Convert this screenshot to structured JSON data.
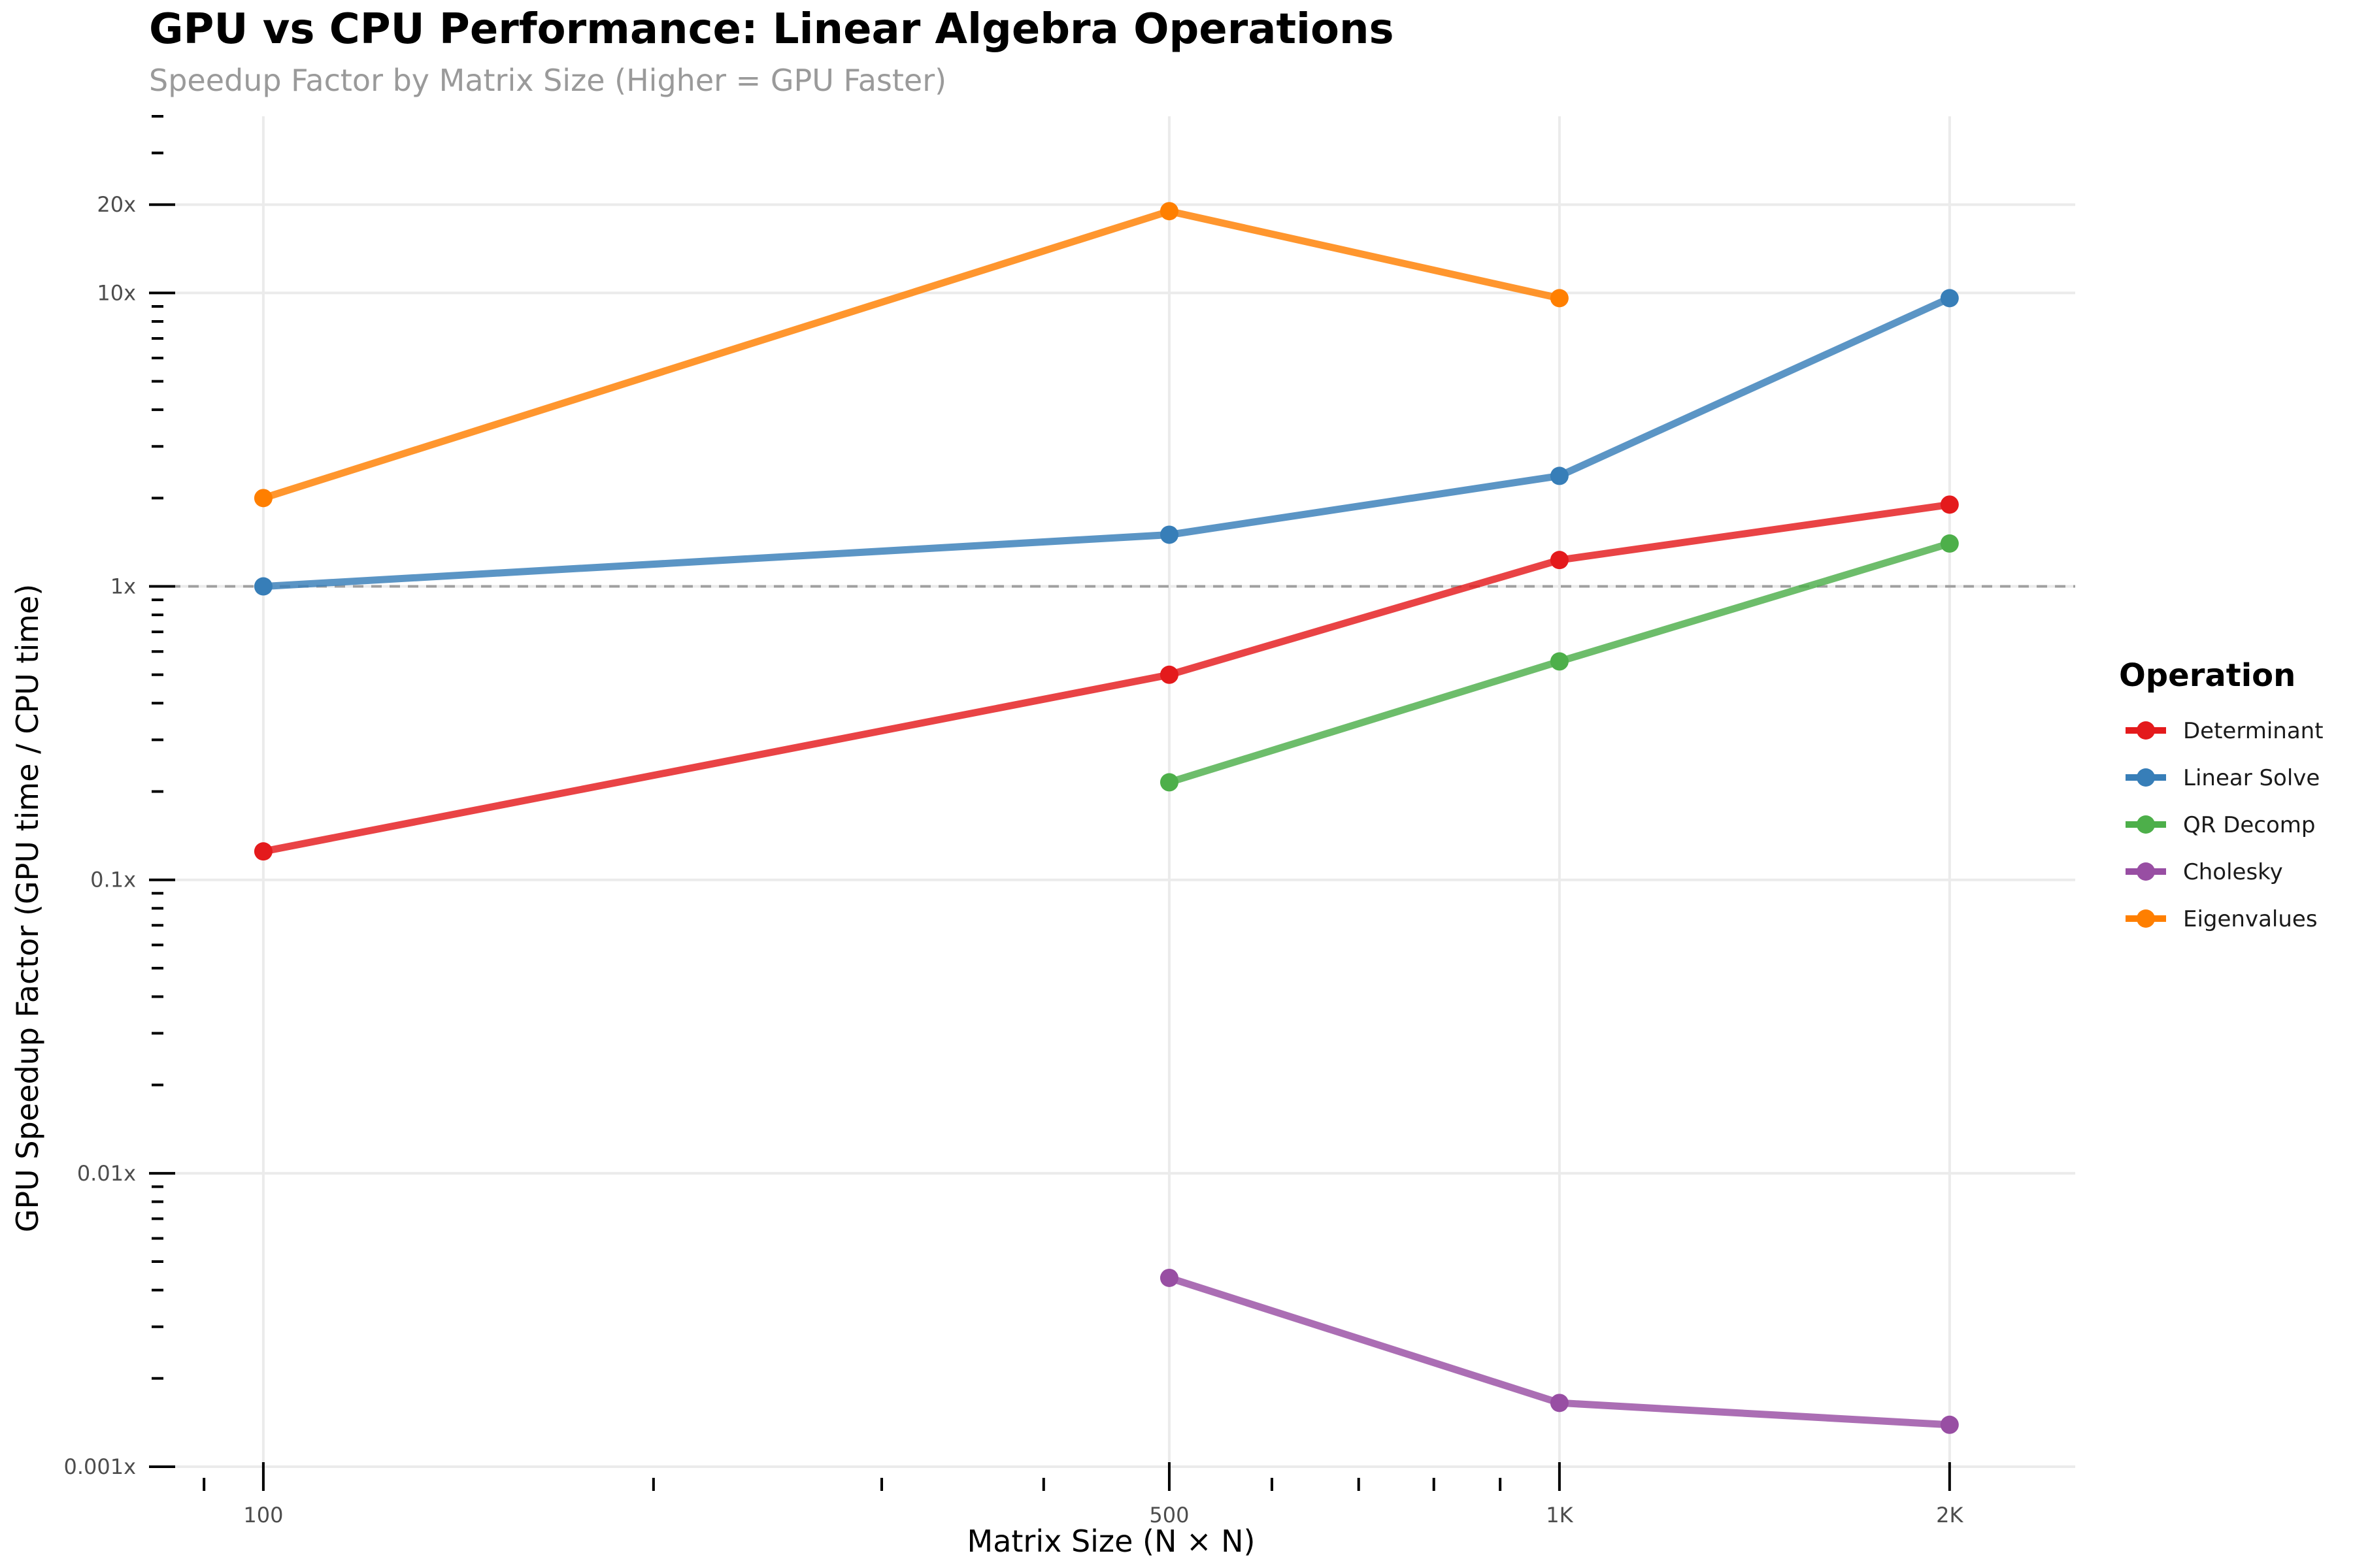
{
  "chart_data": {
    "type": "line",
    "title": "GPU vs CPU Performance: Linear Algebra Operations",
    "subtitle": "Speedup Factor by Matrix Size (Higher = GPU Faster)",
    "xlabel": "Matrix Size (N × N)",
    "ylabel": "GPU Speedup Factor (GPU time / CPU time)",
    "x_scale": "log",
    "y_scale": "log",
    "xlim": [
      82,
      2500
    ],
    "ylim": [
      0.001,
      40
    ],
    "x_ticks": [
      100,
      500,
      1000,
      2000
    ],
    "x_tick_labels": [
      "100",
      "500",
      "1K",
      "2K"
    ],
    "y_ticks": [
      0.001,
      0.01,
      0.1,
      1,
      10,
      20
    ],
    "y_tick_labels": [
      "0.001x",
      "0.01x",
      "0.1x",
      "1x",
      "10x",
      "20x"
    ],
    "reference_line": {
      "y": 1,
      "style": "dashed",
      "color": "#a0a0a0"
    },
    "grid": true,
    "legend": {
      "title": "Operation",
      "position": "right"
    },
    "series": [
      {
        "name": "Determinant",
        "color": "#e41a1c",
        "points": [
          [
            100,
            0.125
          ],
          [
            500,
            0.5
          ],
          [
            1000,
            1.23
          ],
          [
            2000,
            1.9
          ]
        ]
      },
      {
        "name": "Linear Solve",
        "color": "#377eb8",
        "points": [
          [
            100,
            1.0
          ],
          [
            500,
            1.5
          ],
          [
            1000,
            2.38
          ],
          [
            2000,
            9.6
          ]
        ]
      },
      {
        "name": "QR Decomp",
        "color": "#4daf4a",
        "points": [
          [
            500,
            0.215
          ],
          [
            1000,
            0.555
          ],
          [
            2000,
            1.4
          ]
        ]
      },
      {
        "name": "Cholesky",
        "color": "#984ea3",
        "points": [
          [
            500,
            0.0044
          ],
          [
            1000,
            0.00165
          ],
          [
            2000,
            0.00139
          ]
        ]
      },
      {
        "name": "Eigenvalues",
        "color": "#ff7f00",
        "points": [
          [
            100,
            2.0
          ],
          [
            500,
            19
          ],
          [
            1000,
            9.6
          ]
        ]
      }
    ]
  }
}
